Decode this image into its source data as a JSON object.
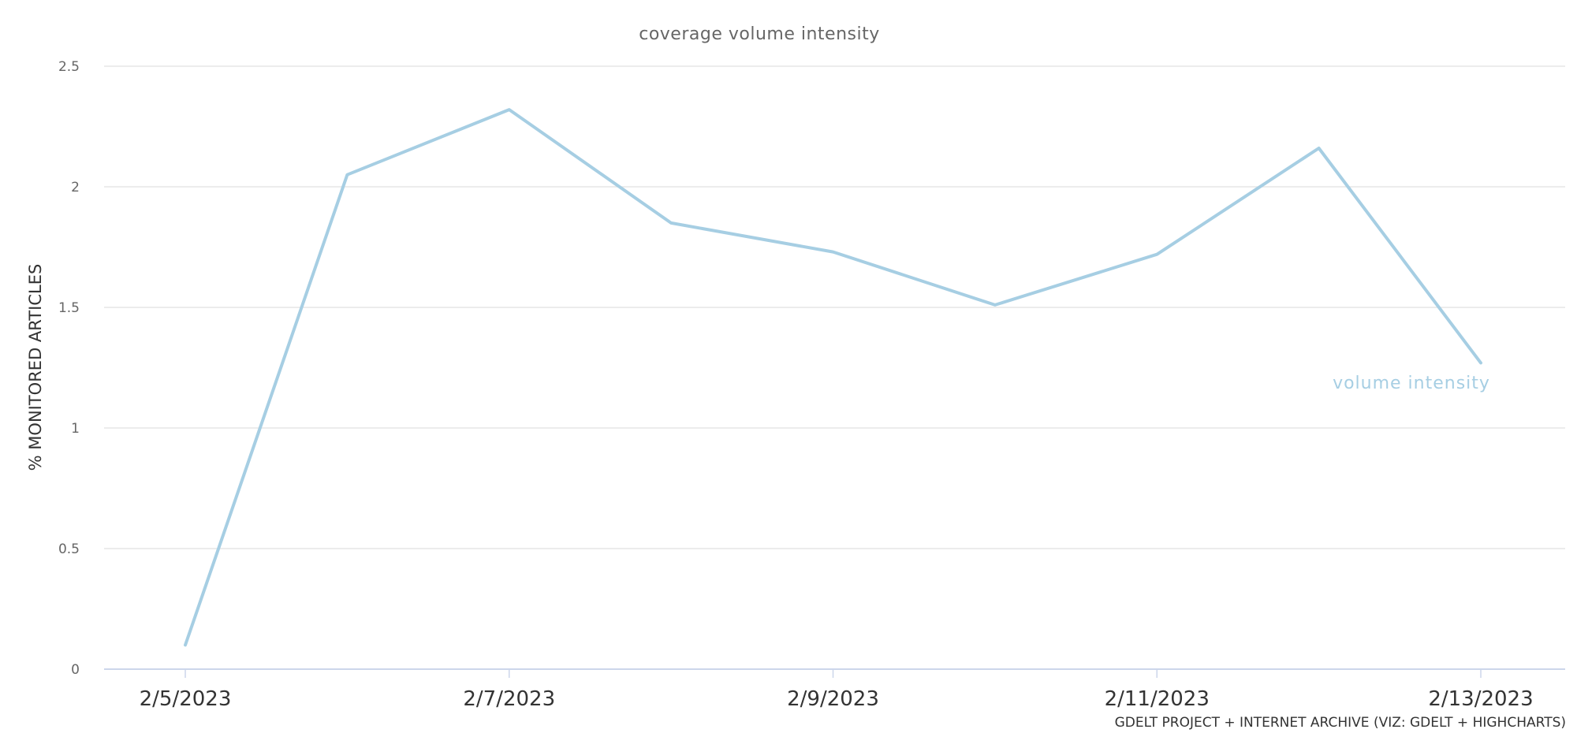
{
  "chart_data": {
    "type": "line",
    "title": "coverage volume intensity",
    "ylabel": "% MONITORED ARTICLES",
    "xlabel": "",
    "x": [
      "2/5/2023",
      "2/6/2023",
      "2/7/2023",
      "2/8/2023",
      "2/9/2023",
      "2/10/2023",
      "2/11/2023",
      "2/12/2023",
      "2/13/2023"
    ],
    "x_tick_labels": [
      "2/5/2023",
      "2/7/2023",
      "2/9/2023",
      "2/11/2023",
      "2/13/2023"
    ],
    "ylim": [
      0,
      2.5
    ],
    "y_ticks": [
      "0",
      "0.5",
      "1",
      "1.5",
      "2",
      "2.5"
    ],
    "grid": true,
    "legend": "none",
    "series": [
      {
        "name": "volume intensity",
        "color": "#a6cee3",
        "values": [
          0.1,
          2.05,
          2.32,
          1.85,
          1.73,
          1.51,
          1.72,
          2.16,
          1.27
        ]
      }
    ],
    "credit": "GDELT PROJECT + INTERNET ARCHIVE (VIZ: GDELT + HIGHCHARTS)"
  }
}
